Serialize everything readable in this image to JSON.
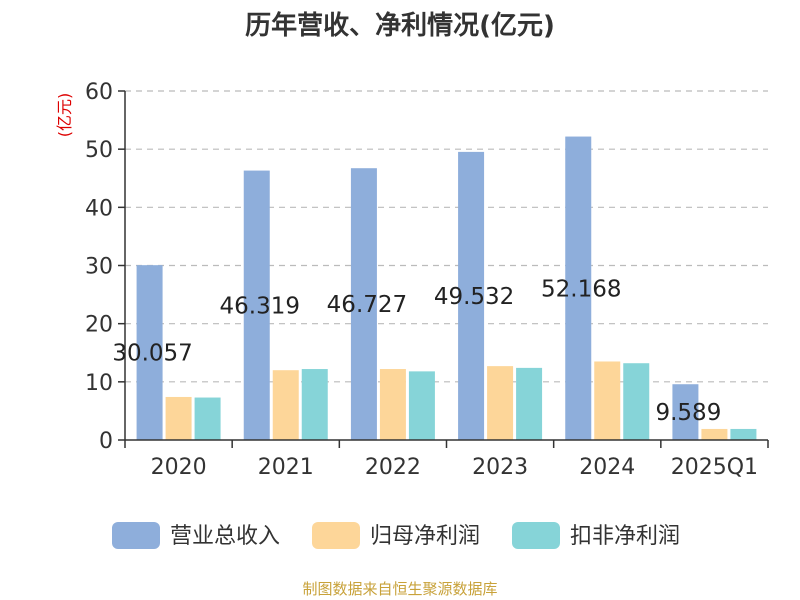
{
  "chart_data": {
    "type": "bar",
    "title": "历年营收、净利情况(亿元)",
    "unit_label": "(亿元)",
    "categories": [
      "2020",
      "2021",
      "2022",
      "2023",
      "2024",
      "2025Q1"
    ],
    "series": [
      {
        "name": "营业总收入",
        "values": [
          30.057,
          46.319,
          46.727,
          49.532,
          52.168,
          9.589
        ],
        "color": "#8eaedb",
        "show_labels": true
      },
      {
        "name": "归母净利润",
        "values": [
          7.4,
          12.0,
          12.2,
          12.7,
          13.5,
          1.9
        ],
        "color": "#fdd699",
        "show_labels": false
      },
      {
        "name": "扣非净利润",
        "values": [
          7.3,
          12.2,
          11.8,
          12.4,
          13.2,
          1.9
        ],
        "color": "#86d4d8",
        "show_labels": false
      }
    ],
    "data_labels": [
      "30.057",
      "46.319",
      "46.727",
      "49.532",
      "52.168",
      "9.589"
    ],
    "y_ticks": [
      "0",
      "10",
      "20",
      "30",
      "40",
      "50",
      "60"
    ],
    "ylim": [
      0,
      60
    ],
    "grid": true,
    "legend_position": "bottom",
    "source": "制图数据来自恒生聚源数据库"
  },
  "colors": {
    "title": "#333333",
    "unit": "#dd0000",
    "source": "#c8a23a",
    "grid": "#bbbbbb",
    "axis": "#333333"
  }
}
